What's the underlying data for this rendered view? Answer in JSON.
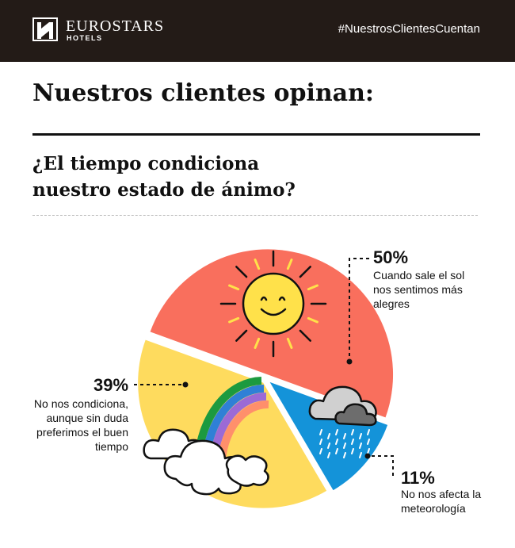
{
  "header": {
    "brand_name": "EUROSTARS",
    "brand_sub": "HOTELS",
    "hashtag": "#NuestrosClientesCuentan"
  },
  "title": "Nuestros clientes opinan:",
  "question_line1": "¿El tiempo condiciona",
  "question_line2": "nuestro estado de ánimo?",
  "colors": {
    "header_bg": "#231b17",
    "sun_slice": "#f96f5d",
    "cloud_slice": "#fedb5e",
    "rain_slice": "#1493d9",
    "sun": "#ffe14a"
  },
  "chart_data": {
    "type": "pie",
    "slices": [
      {
        "value": 50,
        "label": "50%",
        "text": "Cuando sale el sol nos sentimos más alegres",
        "icon": "sun-icon"
      },
      {
        "value": 11,
        "label": "11%",
        "text": "No nos afecta la meteorología",
        "icon": "rain-cloud-icon"
      },
      {
        "value": 39,
        "label": "39%",
        "text": "No nos condiciona, aunque sin duda preferimos el buen tiempo",
        "icon": "rainbow-icon"
      }
    ],
    "exploded": true,
    "legend": "callout labels"
  },
  "labels": {
    "sun_pct": "50%",
    "sun_l1": "Cuando sale el sol",
    "sun_l2": "nos sentimos más",
    "sun_l3": "alegres",
    "rain_pct": "11%",
    "rain_l1": "No nos afecta la",
    "rain_l2": "meteorología",
    "rainbow_pct": "39%",
    "rainbow_l1": "No nos condiciona,",
    "rainbow_l2": "aunque sin duda",
    "rainbow_l3": "preferimos el buen",
    "rainbow_l4": "tiempo"
  }
}
